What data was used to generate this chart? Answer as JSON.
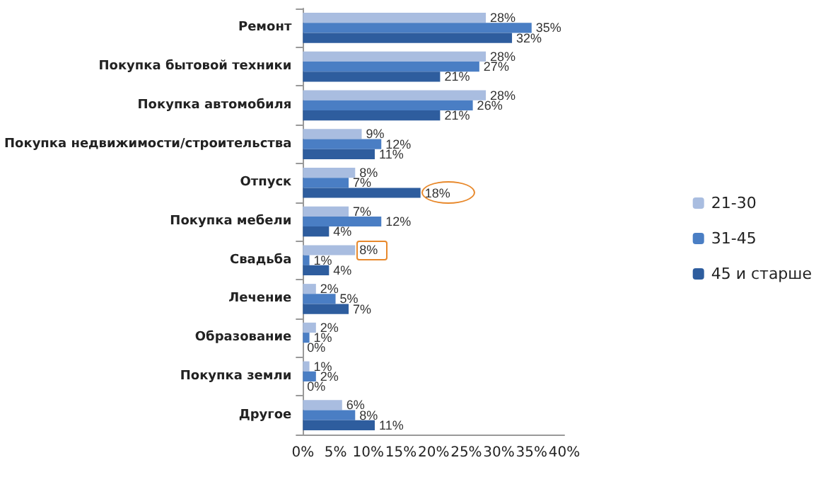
{
  "chart_data": {
    "type": "bar",
    "orientation": "horizontal",
    "categories": [
      "Ремонт",
      "Покупка бытовой техники",
      "Покупка автомобиля",
      "Покупка недвижимости/строительства",
      "Отпуск",
      "Покупка мебели",
      "Свадьба",
      "Лечение",
      "Образование",
      "Покупка земли",
      "Другое"
    ],
    "series": [
      {
        "name": "21-30",
        "color": "#a9bde0",
        "values": [
          28,
          28,
          28,
          9,
          8,
          7,
          8,
          2,
          2,
          1,
          6
        ],
        "value_labels": [
          "28%",
          "28%",
          "28%",
          "9%",
          "8%",
          "7%",
          "8%",
          "2%",
          "2%",
          "1%",
          "6%"
        ]
      },
      {
        "name": "31-45",
        "color": "#4a7ec4",
        "values": [
          35,
          27,
          26,
          12,
          7,
          12,
          1,
          5,
          1,
          2,
          8
        ],
        "value_labels": [
          "35%",
          "27%",
          "26%",
          "12%",
          "7%",
          "12%",
          "1%",
          "5%",
          "1%",
          "2%",
          "8%"
        ]
      },
      {
        "name": "45 и старше",
        "color": "#2e5d9e",
        "values": [
          32,
          21,
          21,
          11,
          18,
          4,
          4,
          7,
          0,
          0,
          11
        ],
        "value_labels": [
          "32%",
          "21%",
          "21%",
          "11%",
          "18%",
          "4%",
          "4%",
          "7%",
          "0%",
          "0%",
          "11%"
        ]
      }
    ],
    "xlim": [
      0,
      40
    ],
    "xticks": [
      {
        "value": 0,
        "label": "0%"
      },
      {
        "value": 5,
        "label": "5%"
      },
      {
        "value": 10,
        "label": "10%"
      },
      {
        "value": 15,
        "label": "15%"
      },
      {
        "value": 20,
        "label": "20%"
      },
      {
        "value": 25,
        "label": "25%"
      },
      {
        "value": 30,
        "label": "30%"
      },
      {
        "value": 35,
        "label": "35%"
      },
      {
        "value": 40,
        "label": "40%"
      }
    ],
    "grid": false,
    "legend": "right"
  }
}
